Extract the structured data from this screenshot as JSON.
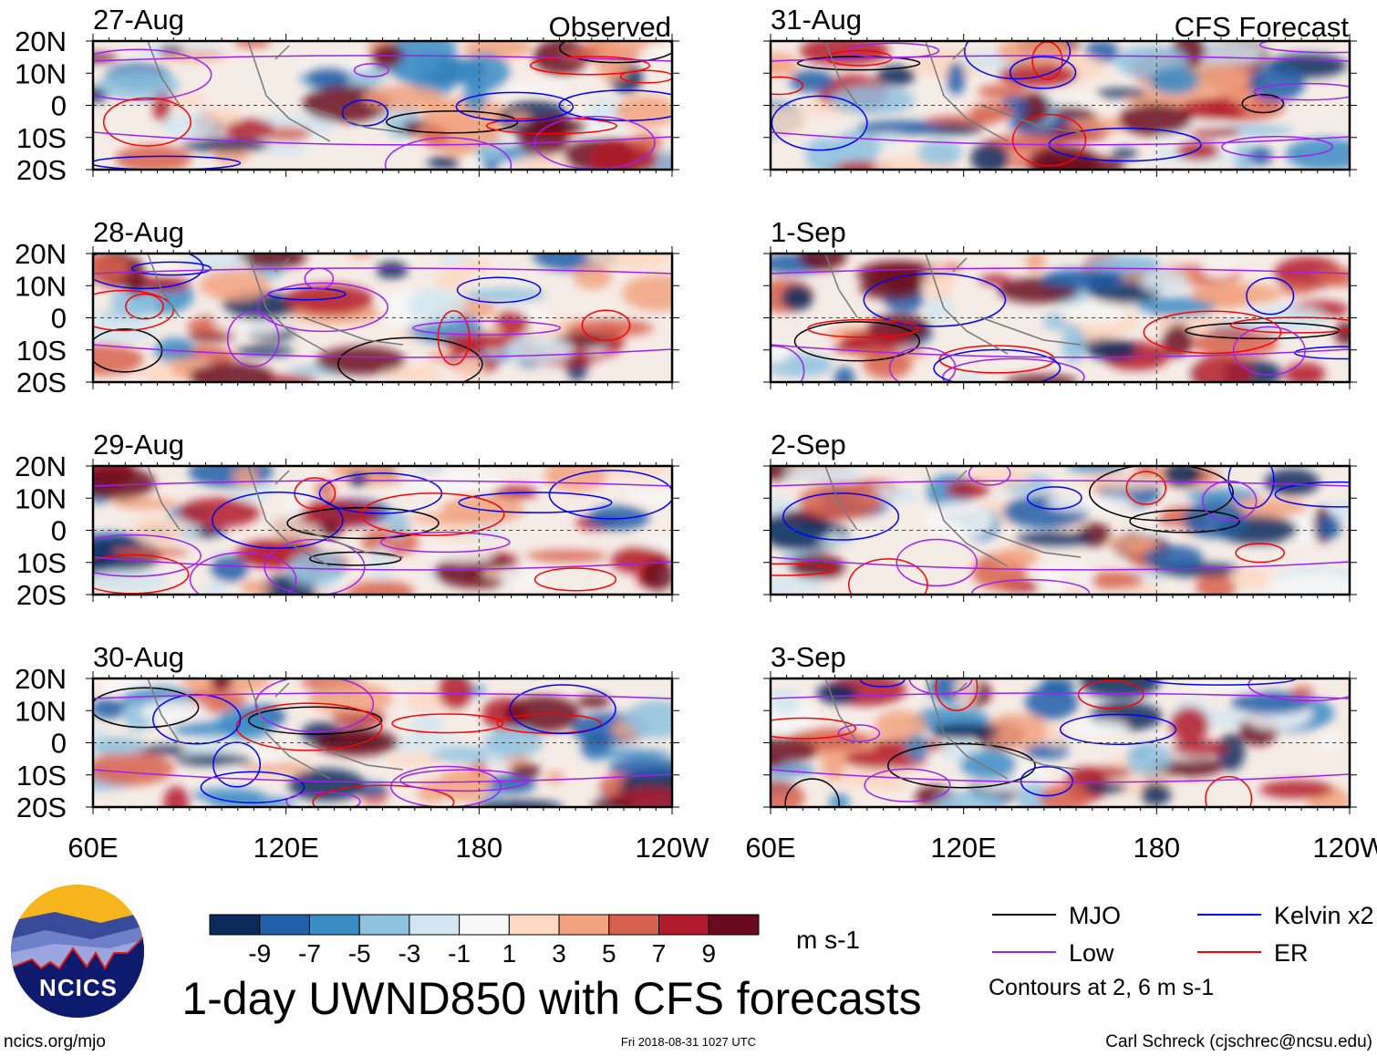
{
  "title": "1-day UWND850 with CFS forecasts",
  "column_titles": {
    "left": "Observed",
    "right": "CFS Forecast"
  },
  "panels": [
    {
      "date": "27-Aug",
      "column": "left"
    },
    {
      "date": "28-Aug",
      "column": "left"
    },
    {
      "date": "29-Aug",
      "column": "left"
    },
    {
      "date": "30-Aug",
      "column": "left"
    },
    {
      "date": "31-Aug",
      "column": "right"
    },
    {
      "date": "1-Sep",
      "column": "right"
    },
    {
      "date": "2-Sep",
      "column": "right"
    },
    {
      "date": "3-Sep",
      "column": "right"
    }
  ],
  "lat_labels": [
    "20N",
    "10N",
    "0",
    "10S",
    "20S"
  ],
  "lon_labels": [
    "60E",
    "120E",
    "180",
    "120W"
  ],
  "colorbar": {
    "ticks": [
      "-9",
      "-7",
      "-5",
      "-3",
      "-1",
      "1",
      "3",
      "5",
      "7",
      "9"
    ],
    "units": "m s-1",
    "colors": [
      "#0b2a5c",
      "#1f5ea8",
      "#3a8cc5",
      "#8fc2df",
      "#d2e6f1",
      "#f8f8f8",
      "#fdd8c2",
      "#f2a27f",
      "#d8604e",
      "#b11b2b",
      "#6a0a1d"
    ]
  },
  "legend": {
    "items": [
      {
        "label": "MJO",
        "color": "#000000"
      },
      {
        "label": "Kelvin x2",
        "color": "#0000ff"
      },
      {
        "label": "Low",
        "color": "#a020f0"
      },
      {
        "label": "ER",
        "color": "#ff0000"
      }
    ],
    "note": "Contours at 2, 6 m s-1"
  },
  "logo_text": "NCICS",
  "footer": {
    "site": "ncics.org/mjo",
    "timestamp": "Fri 2018-08-31 1027 UTC",
    "credit": "Carl Schreck (cjschrec@ncsu.edu)"
  }
}
